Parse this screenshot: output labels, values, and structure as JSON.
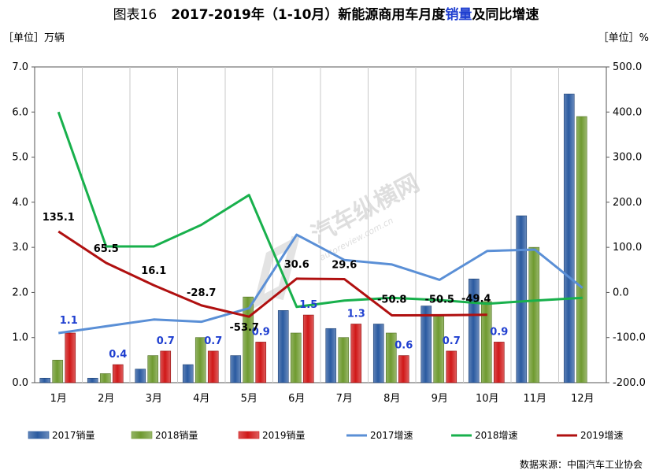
{
  "title": {
    "figure_tag": "图表16",
    "main_before": "2017-2019年（1-10月）新能源商用车月度",
    "main_highlight": "销量",
    "main_after": "及同比增速"
  },
  "source": "数据来源：中国汽车工业协会",
  "watermark": {
    "cn": "汽车纵横网",
    "en": "autoreview.com.cn"
  },
  "colors": {
    "bar2017": "#2a5aa0",
    "bar2018": "#6f9a30",
    "bar2019": "#d01818",
    "line2017": "#5a8fd6",
    "line2018": "#18b04c",
    "line2019": "#b01010",
    "label_blue": "#1f3fd0"
  },
  "chart_data": {
    "type": "bar",
    "categories": [
      "1月",
      "2月",
      "3月",
      "4月",
      "5月",
      "6月",
      "7月",
      "8月",
      "9月",
      "10月",
      "11月",
      "12月"
    ],
    "y_left": {
      "label": "［单位］万辆",
      "ylim": [
        0,
        7
      ],
      "ticks": [
        "0.0",
        "1.0",
        "2.0",
        "3.0",
        "4.0",
        "5.0",
        "6.0",
        "7.0"
      ]
    },
    "y_right": {
      "label": "［单位］%",
      "ylim": [
        -200,
        500
      ],
      "ticks": [
        "-200.0",
        "-100.0",
        "0.0",
        "100.0",
        "200.0",
        "300.0",
        "400.0",
        "500.0"
      ]
    },
    "bar_series": [
      {
        "name": "2017销量",
        "values": [
          0.1,
          0.1,
          0.3,
          0.4,
          0.6,
          1.6,
          1.2,
          1.3,
          1.7,
          2.3,
          3.7,
          6.4
        ]
      },
      {
        "name": "2018销量",
        "values": [
          0.5,
          0.2,
          0.6,
          1.0,
          1.9,
          1.1,
          1.0,
          1.1,
          1.5,
          1.8,
          3.0,
          5.9
        ]
      },
      {
        "name": "2019销量",
        "values": [
          1.1,
          0.4,
          0.7,
          0.7,
          0.9,
          1.5,
          1.3,
          0.6,
          0.7,
          0.9,
          null,
          null
        ]
      }
    ],
    "bar_labels_2019": [
      "1.1",
      "0.4",
      "0.7",
      "0.7",
      "0.9",
      "1.5",
      "1.3",
      "0.6",
      "0.7",
      "0.9"
    ],
    "line_series": [
      {
        "name": "2017增速",
        "values": [
          -90,
          -75,
          -60,
          -65,
          -35,
          128,
          72,
          62,
          28,
          92,
          95,
          10
        ]
      },
      {
        "name": "2018增速",
        "values": [
          400,
          102,
          102,
          150,
          216,
          -32,
          -18,
          -12,
          -17,
          -25,
          -18,
          -12
        ]
      },
      {
        "name": "2019增速",
        "values": [
          135.1,
          65.5,
          16.1,
          -28.7,
          -53.7,
          30.6,
          29.6,
          -50.8,
          -50.5,
          -49.4,
          null,
          null
        ]
      }
    ],
    "line_labels_2019": [
      "135.1",
      "65.5",
      "16.1",
      "-28.7",
      "-53.7",
      "30.6",
      "29.6",
      "-50.8",
      "-50.5",
      "-49.4"
    ],
    "grid": "vertical",
    "legend_position": "bottom"
  }
}
